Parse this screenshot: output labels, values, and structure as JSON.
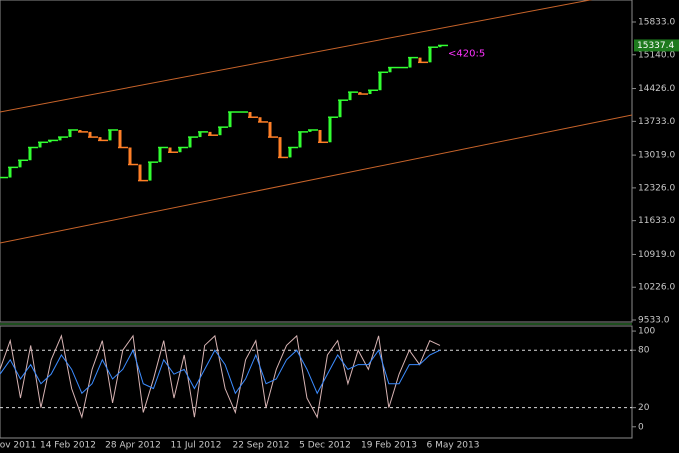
{
  "chart_data": [
    {
      "type": "price",
      "series": [
        {
          "color": "#32ff32",
          "down_color": "#ff7f27",
          "values": [
            12545,
            12760,
            12910,
            13180,
            13290,
            13330,
            13400,
            13550,
            13510,
            13400,
            13330,
            13550,
            13180,
            12820,
            12480,
            12870,
            13180,
            13080,
            13180,
            13400,
            13510,
            13440,
            13610,
            13930,
            13930,
            13820,
            13720,
            13400,
            12970,
            13180,
            13510,
            13550,
            13290,
            13820,
            14180,
            14350,
            14310,
            14390,
            14770,
            14870,
            14870,
            15080,
            14980,
            15300,
            15337.4
          ]
        }
      ],
      "last_price_label": "15337.4",
      "annotation": "<420:5",
      "channel": [
        {
          "color": "#c8642a",
          "values": [
            13930,
            16467
          ]
        },
        {
          "color": "#c8642a",
          "values": [
            11161,
            13867
          ]
        }
      ],
      "ylim": [
        9491,
        16298
      ],
      "yticks": [
        {
          "value": 9533,
          "label": "9533.0"
        },
        {
          "value": 10226,
          "label": "10226.0"
        },
        {
          "value": 10919,
          "label": "10919.0"
        },
        {
          "value": 11633,
          "label": "11633.0"
        },
        {
          "value": 12326,
          "label": "12326.0"
        },
        {
          "value": 13019,
          "label": "13019.0"
        },
        {
          "value": 13733,
          "label": "13733.0"
        },
        {
          "value": 14426,
          "label": "14426.0"
        },
        {
          "value": 15140,
          "label": "15140.0"
        },
        {
          "value": 15833,
          "label": "15833.0"
        }
      ],
      "xtick_labels": [
        "ov 2011",
        "14 Feb 2012",
        "28 Apr 2012",
        "11 Jul 2012",
        "22 Sep 2012",
        "5 Dec 2012",
        "19 Feb 2013",
        "6 May 2013"
      ]
    },
    {
      "type": "oscillator",
      "series": [
        {
          "color": "#d8b4b4",
          "values": [
            60,
            90,
            30,
            85,
            20,
            70,
            95,
            40,
            10,
            60,
            90,
            25,
            80,
            95,
            15,
            50,
            90,
            30,
            75,
            10,
            85,
            95,
            40,
            15,
            70,
            90,
            20,
            60,
            85,
            95,
            30,
            10,
            75,
            90,
            45,
            80,
            60,
            95,
            20,
            55,
            80,
            65,
            90,
            85
          ]
        },
        {
          "color": "#3c8cff",
          "values": [
            55,
            70,
            50,
            65,
            45,
            55,
            75,
            60,
            35,
            45,
            70,
            50,
            60,
            80,
            45,
            40,
            70,
            55,
            60,
            40,
            60,
            80,
            65,
            35,
            50,
            75,
            45,
            50,
            70,
            80,
            60,
            35,
            55,
            75,
            60,
            65,
            65,
            80,
            45,
            45,
            65,
            65,
            75,
            80
          ]
        }
      ],
      "levels": [
        20,
        80
      ],
      "ylim": [
        -11.7,
        105.3
      ],
      "yticks": [
        0,
        20,
        80,
        100
      ]
    }
  ]
}
